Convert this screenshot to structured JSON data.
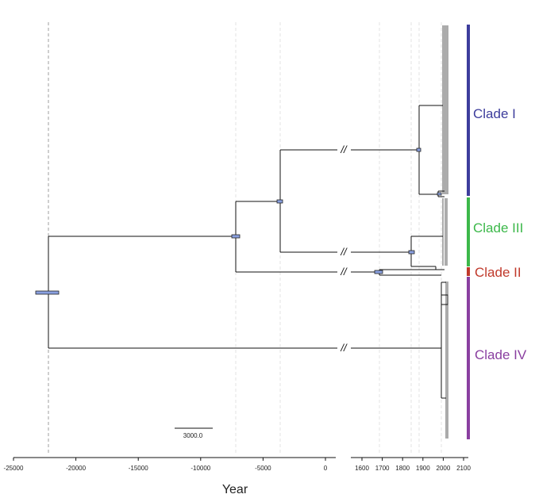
{
  "figure": {
    "axis_title": "Year",
    "scale_bar_label": "3000.0",
    "left_axis": {
      "ticks": [
        -25000,
        -20000,
        -15000,
        -10000,
        -5000,
        0
      ],
      "tick_labels": [
        "-25000",
        "-20000",
        "-15000",
        "-10000",
        "-5000",
        "0"
      ]
    },
    "right_axis": {
      "ticks": [
        1600,
        1700,
        1800,
        1900,
        2000,
        2100
      ],
      "tick_labels": [
        "1600",
        "1700",
        "1800",
        "1900",
        "2000",
        "2100"
      ]
    },
    "break_symbol": "//",
    "clades": [
      {
        "name": "Clade I",
        "color": "#3d3d9c"
      },
      {
        "name": "Clade III",
        "color": "#3cb84a"
      },
      {
        "name": "Clade II",
        "color": "#c0392b"
      },
      {
        "name": "Clade IV",
        "color": "#8a3fa0"
      }
    ],
    "node_bar_color": "#8aa0e0"
  }
}
